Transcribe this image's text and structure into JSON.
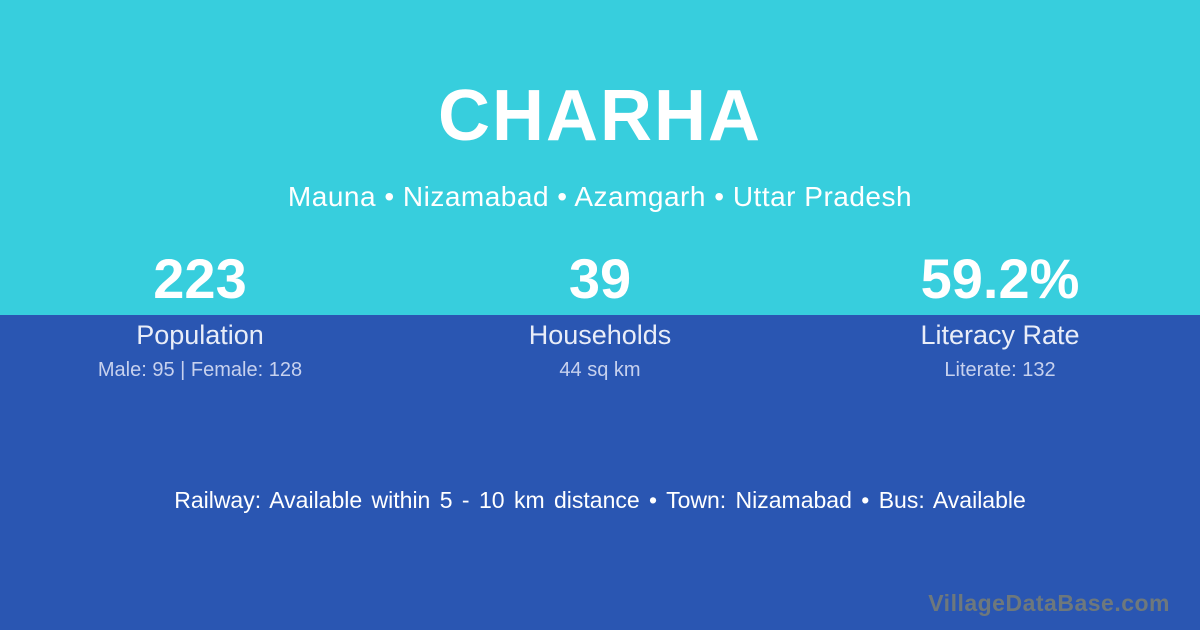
{
  "colors": {
    "top_background": "#37cedd",
    "bottom_background": "#2a56b2",
    "text_primary": "#ffffff",
    "stat_label": "#e9edf8",
    "stat_detail": "#c7d1ee",
    "watermark_text": "#6e787c"
  },
  "header": {
    "village_name": "CHARHA",
    "breadcrumb": {
      "parts": [
        "Mauna",
        "Nizamabad",
        "Azamgarh",
        "Uttar Pradesh"
      ],
      "separator": "•"
    }
  },
  "stats": [
    {
      "value": "223",
      "label": "Population",
      "detail": "Male: 95 | Female: 128"
    },
    {
      "value": "39",
      "label": "Households",
      "detail": "44 sq km"
    },
    {
      "value": "59.2%",
      "label": "Literacy Rate",
      "detail": "Literate: 132"
    }
  ],
  "footer": {
    "facts": [
      "Railway: Available within 5 - 10 km distance",
      "Town: Nizamabad",
      "Bus: Available"
    ],
    "separator": "•"
  },
  "watermark": "VillageDataBase.com"
}
